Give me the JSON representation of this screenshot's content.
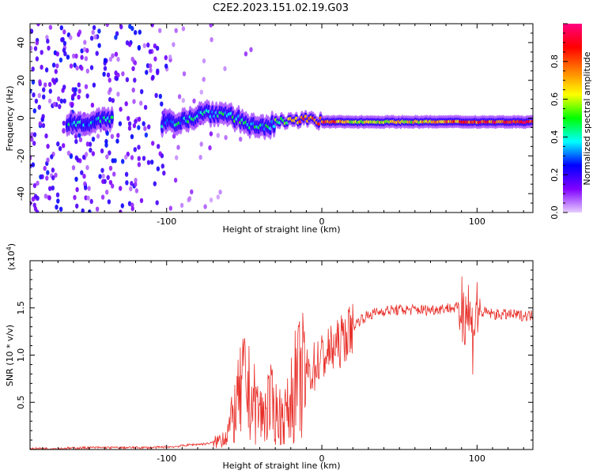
{
  "figure_title": "C2E2.2023.151.02.19.G03",
  "chart_data": [
    {
      "type": "heatmap",
      "title": "C2E2.2023.151.02.19.G03",
      "xlabel": "Height of straight line (km)",
      "ylabel": "Frequency (Hz)",
      "xlim": [
        -188,
        136
      ],
      "ylim": [
        -50,
        50
      ],
      "x_ticks": [
        -100,
        0,
        100
      ],
      "y_ticks": [
        -40,
        -20,
        0,
        20,
        40
      ],
      "colorbar": {
        "label": "Normalized spectral amplitude",
        "range": [
          0,
          1
        ],
        "ticks": [
          0.0,
          0.2,
          0.4,
          0.6,
          0.8
        ],
        "colormap": [
          "#e6ccff",
          "#8000ff",
          "#0000ff",
          "#00ffff",
          "#00ff00",
          "#ffff00",
          "#ff8000",
          "#ff0000",
          "#ff0080"
        ]
      },
      "ridge": [
        {
          "x": -165,
          "f": -3,
          "amp": 0.35
        },
        {
          "x": -150,
          "f": -2,
          "amp": 0.3
        },
        {
          "x": -140,
          "f": -1,
          "amp": 0.35
        },
        {
          "x": -100,
          "f": -3,
          "amp": 0.35
        },
        {
          "x": -85,
          "f": 0,
          "amp": 0.4
        },
        {
          "x": -75,
          "f": 3,
          "amp": 0.4
        },
        {
          "x": -60,
          "f": 2,
          "amp": 0.4
        },
        {
          "x": -48,
          "f": -3,
          "amp": 0.45
        },
        {
          "x": -40,
          "f": -6,
          "amp": 0.4
        },
        {
          "x": -30,
          "f": -3,
          "amp": 0.45
        },
        {
          "x": -20,
          "f": 0,
          "amp": 0.6
        },
        {
          "x": -10,
          "f": -1,
          "amp": 0.8
        },
        {
          "x": 0,
          "f": -2,
          "amp": 0.8
        },
        {
          "x": 20,
          "f": -2,
          "amp": 0.65
        },
        {
          "x": 40,
          "f": -2,
          "amp": 0.6
        },
        {
          "x": 60,
          "f": -2,
          "amp": 0.62
        },
        {
          "x": 80,
          "f": -2,
          "amp": 0.7
        },
        {
          "x": 100,
          "f": -2,
          "amp": 0.8
        },
        {
          "x": 120,
          "f": -2,
          "amp": 0.85
        },
        {
          "x": 136,
          "f": -2,
          "amp": 0.88
        }
      ]
    },
    {
      "type": "line",
      "xlabel": "Height of straight line (km)",
      "ylabel": "SNR (10 * v/v)",
      "y_multiplier": "(x10",
      "y_multiplier_exp": "4",
      "y_multiplier_close": ")",
      "xlim": [
        -188,
        136
      ],
      "ylim": [
        0,
        2.0
      ],
      "x_ticks": [
        -100,
        0,
        100
      ],
      "y_ticks": [
        0.5,
        1.0,
        1.5
      ],
      "color": "#e8302a",
      "series": [
        {
          "x": [
            -188,
            -170,
            -150,
            -130,
            -110,
            -95,
            -85,
            -75,
            -68,
            -62,
            -58,
            -54,
            -50,
            -46,
            -42,
            -38,
            -34,
            -30,
            -26,
            -22,
            -18,
            -14,
            -10,
            -6,
            -2,
            2,
            6,
            10,
            15,
            20,
            25,
            30,
            35,
            40,
            50,
            60,
            70,
            80,
            88,
            92,
            95,
            97,
            99,
            102,
            106,
            112,
            120,
            128,
            136
          ],
          "y": [
            0.01,
            0.01,
            0.02,
            0.02,
            0.02,
            0.03,
            0.05,
            0.06,
            0.08,
            0.15,
            0.3,
            0.5,
            0.7,
            0.55,
            0.45,
            0.35,
            0.5,
            0.4,
            0.35,
            0.4,
            0.65,
            0.75,
            0.8,
            0.85,
            0.95,
            1.0,
            1.05,
            1.1,
            1.2,
            1.3,
            1.38,
            1.42,
            1.45,
            1.47,
            1.48,
            1.48,
            1.48,
            1.5,
            1.5,
            1.55,
            1.45,
            1.2,
            1.5,
            1.45,
            1.45,
            1.43,
            1.43,
            1.42,
            1.42
          ]
        }
      ]
    }
  ]
}
